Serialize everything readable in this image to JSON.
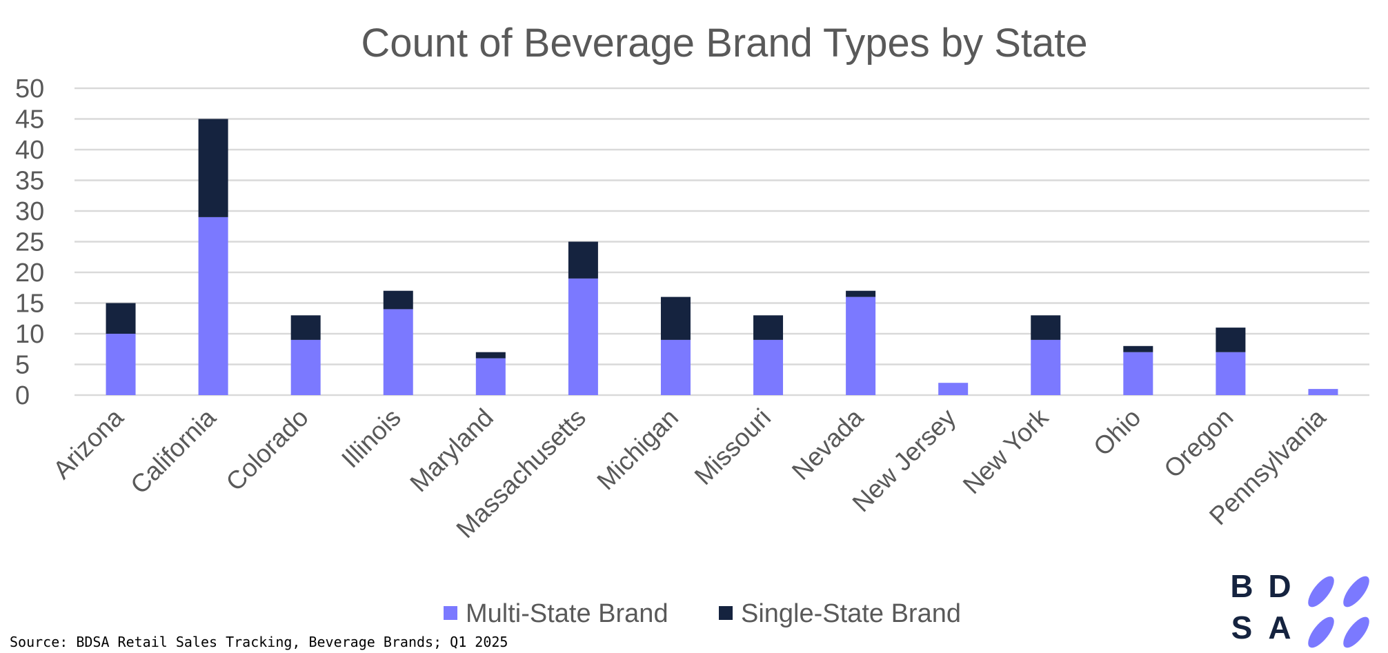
{
  "chart_data": {
    "type": "bar",
    "stacked": true,
    "title": "Count of Beverage Brand Types by State",
    "categories": [
      "Arizona",
      "California",
      "Colorado",
      "Illinois",
      "Maryland",
      "Massachusetts",
      "Michigan",
      "Missouri",
      "Nevada",
      "New Jersey",
      "New York",
      "Ohio",
      "Oregon",
      "Pennsylvania"
    ],
    "series": [
      {
        "name": "Multi-State Brand",
        "color": "#7b79ff",
        "values": [
          10,
          29,
          9,
          14,
          6,
          19,
          9,
          9,
          16,
          2,
          9,
          7,
          7,
          1
        ]
      },
      {
        "name": "Single-State Brand",
        "color": "#15233f",
        "values": [
          5,
          16,
          4,
          3,
          1,
          6,
          7,
          4,
          1,
          0,
          4,
          1,
          4,
          0
        ]
      }
    ],
    "ylim": [
      0,
      50
    ],
    "yticks": [
      "0",
      "5",
      "10",
      "15",
      "20",
      "25",
      "30",
      "35",
      "40",
      "45",
      "50"
    ],
    "grid": true,
    "legend_position": "bottom"
  },
  "source_note": "Source: BDSA Retail Sales Tracking, Beverage Brands; Q1 2025",
  "logo": {
    "letters": [
      "B",
      "D",
      "S",
      "A"
    ],
    "accent_color": "#7b79ff",
    "text_color": "#15233f"
  }
}
